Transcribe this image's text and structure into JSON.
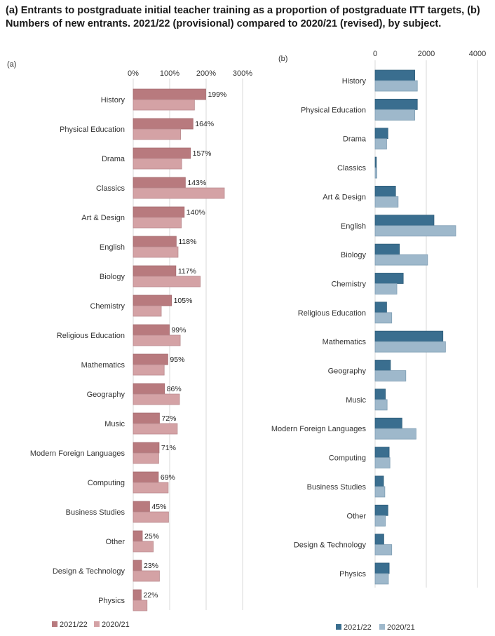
{
  "title": {
    "line1": "(a) Entrants to postgraduate initial teacher training as a proportion of postgraduate ITT targets, (b)",
    "line2": "Numbers of new entrants. 2021/22 (provisional) compared to 2020/21 (revised), by subject."
  },
  "colors": {
    "a_2122": "#b87a7e",
    "a_2021": "#d4a2a5",
    "b_2122": "#3a6e8f",
    "b_2021": "#9eb8cb",
    "grid": "#d9d9d9"
  },
  "chart_data": [
    {
      "panel_label": "(a)",
      "type": "bar",
      "orientation": "horizontal",
      "categories": [
        "History",
        "Physical Education",
        "Drama",
        "Classics",
        "Art & Design",
        "English",
        "Biology",
        "Chemistry",
        "Religious Education",
        "Mathematics",
        "Geography",
        "Music",
        "Modern Foreign Languages",
        "Computing",
        "Business Studies",
        "Other",
        "Design & Technology",
        "Physics"
      ],
      "series": [
        {
          "name": "2021/22",
          "values": [
            199,
            164,
            157,
            143,
            140,
            118,
            117,
            105,
            99,
            95,
            86,
            72,
            71,
            69,
            45,
            25,
            23,
            22
          ],
          "data_labels": [
            "199%",
            "164%",
            "157%",
            "143%",
            "140%",
            "118%",
            "117%",
            "105%",
            "99%",
            "95%",
            "86%",
            "72%",
            "71%",
            "69%",
            "45%",
            "25%",
            "23%",
            "22%"
          ]
        },
        {
          "name": "2020/21",
          "values": [
            168,
            130,
            133,
            250,
            132,
            123,
            184,
            77,
            129,
            85,
            127,
            121,
            70,
            96,
            97,
            55,
            72,
            38
          ]
        }
      ],
      "xlim": [
        0,
        300
      ],
      "xticks": [
        0,
        100,
        200,
        300
      ],
      "xtick_labels": [
        "0%",
        "100%",
        "200%",
        "300%"
      ],
      "grid": true,
      "legend": "bottom"
    },
    {
      "panel_label": "(b)",
      "type": "bar",
      "orientation": "horizontal",
      "categories": [
        "History",
        "Physical Education",
        "Drama",
        "Classics",
        "Art & Design",
        "English",
        "Biology",
        "Chemistry",
        "Religious Education",
        "Mathematics",
        "Geography",
        "Music",
        "Modern Foreign Languages",
        "Computing",
        "Business Studies",
        "Other",
        "Design & Technology",
        "Physics"
      ],
      "series": [
        {
          "name": "2021/22",
          "values": [
            1550,
            1650,
            500,
            50,
            800,
            2300,
            950,
            1100,
            450,
            2650,
            600,
            400,
            1050,
            550,
            330,
            500,
            340,
            550
          ]
        },
        {
          "name": "2020/21",
          "values": [
            1650,
            1550,
            450,
            70,
            900,
            3150,
            2050,
            850,
            650,
            2750,
            1200,
            470,
            1600,
            580,
            380,
            400,
            650,
            520
          ]
        }
      ],
      "xlim": [
        0,
        4000
      ],
      "xticks": [
        0,
        2000,
        4000
      ],
      "xtick_labels": [
        "0",
        "2000",
        "4000"
      ],
      "grid": true,
      "legend": "bottom"
    }
  ]
}
